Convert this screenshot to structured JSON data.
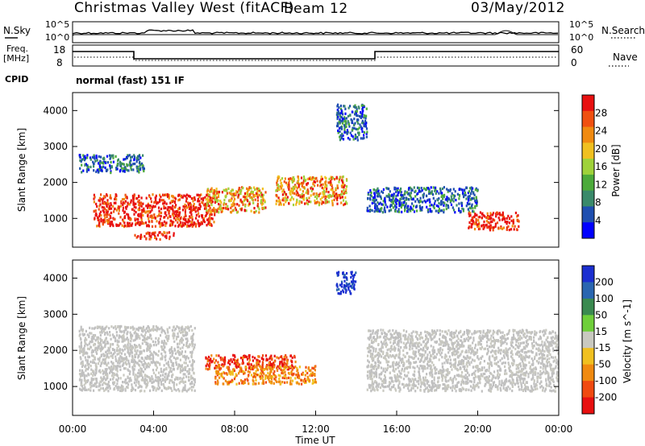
{
  "header": {
    "station": "Christmas Valley West (fitACF)",
    "beam": "Beam 12",
    "date": "03/May/2012"
  },
  "top_panels": {
    "nsky_label": "N.Sky",
    "nsearch_label": "N.Search",
    "nsky_ticks": [
      "10^5",
      "10^0"
    ],
    "nsky_ticks_right": [
      "10^5",
      "10^0"
    ],
    "freq_label": "Freq.",
    "freq_unit": "[MHz]",
    "freq_ticks": [
      "18",
      "8"
    ],
    "nave_label": "Nave",
    "nave_ticks": [
      "60",
      "0"
    ],
    "cpid_label": "CPID",
    "cpid_value": "normal (fast) 151 IF"
  },
  "colors": {
    "power_scale": [
      "#0000ff",
      "#1f4fb0",
      "#3a8a6a",
      "#4caa3a",
      "#9fd23a",
      "#f0c020",
      "#f08a10",
      "#f05010",
      "#e81010"
    ],
    "velocity_scale": [
      "#1b2fd0",
      "#2a66b0",
      "#3a8a50",
      "#6fcf3a",
      "#c9c9c0",
      "#f0c020",
      "#f08a10",
      "#f04a10",
      "#e81010"
    ],
    "ground_scatter": "#c0c0c0"
  },
  "chart_data": [
    {
      "type": "heatmap",
      "name": "power-panel",
      "xlabel": "",
      "ylabel": "Slant Range [km]",
      "yticks": [
        "1000",
        "2000",
        "3000",
        "4000"
      ],
      "ylim": [
        200,
        4500
      ],
      "colorbar": {
        "label": "Power [dB]",
        "ticks": [
          "4",
          "8",
          "12",
          "16",
          "20",
          "24",
          "28"
        ],
        "range": [
          0,
          32
        ]
      },
      "echo_regions": [
        {
          "t_start": 0.3,
          "t_end": 3.5,
          "r_start": 2300,
          "r_end": 2800,
          "level": "low"
        },
        {
          "t_start": 1.0,
          "t_end": 7.0,
          "r_start": 800,
          "r_end": 1700,
          "level": "high"
        },
        {
          "t_start": 3.0,
          "t_end": 5.0,
          "r_start": 450,
          "r_end": 650,
          "level": "high"
        },
        {
          "t_start": 6.5,
          "t_end": 9.5,
          "r_start": 1200,
          "r_end": 1900,
          "level": "medium"
        },
        {
          "t_start": 10.0,
          "t_end": 13.5,
          "r_start": 1400,
          "r_end": 2200,
          "level": "medium"
        },
        {
          "t_start": 13.0,
          "t_end": 14.5,
          "r_start": 3200,
          "r_end": 4200,
          "level": "low"
        },
        {
          "t_start": 14.5,
          "t_end": 20.0,
          "r_start": 1200,
          "r_end": 1900,
          "level": "low"
        },
        {
          "t_start": 19.5,
          "t_end": 22.0,
          "r_start": 700,
          "r_end": 1200,
          "level": "high"
        }
      ]
    },
    {
      "type": "heatmap",
      "name": "velocity-panel",
      "xlabel": "Time UT",
      "ylabel": "Slant Range [km]",
      "xticks": [
        "00:00",
        "04:00",
        "08:00",
        "12:00",
        "16:00",
        "20:00",
        "00:00"
      ],
      "xlim": [
        0,
        24
      ],
      "yticks": [
        "1000",
        "2000",
        "3000",
        "4000"
      ],
      "ylim": [
        200,
        4500
      ],
      "colorbar": {
        "label": "Velocity [m s^-1]",
        "ticks": [
          "200",
          "100",
          "50",
          "15",
          "-15",
          "-50",
          "-100",
          "-200"
        ],
        "range": [
          -250,
          250
        ]
      },
      "echo_regions": [
        {
          "t_start": 0.3,
          "t_end": 6.0,
          "r_start": 900,
          "r_end": 2700,
          "velocity": "ground"
        },
        {
          "t_start": 6.5,
          "t_end": 11.0,
          "r_start": 1500,
          "r_end": 1900,
          "velocity": "-200"
        },
        {
          "t_start": 7.0,
          "t_end": 12.0,
          "r_start": 1100,
          "r_end": 1600,
          "velocity": "-100"
        },
        {
          "t_start": 13.0,
          "t_end": 14.0,
          "r_start": 3600,
          "r_end": 4200,
          "velocity": "200"
        },
        {
          "t_start": 14.5,
          "t_end": 24.0,
          "r_start": 900,
          "r_end": 2600,
          "velocity": "ground"
        }
      ]
    }
  ]
}
